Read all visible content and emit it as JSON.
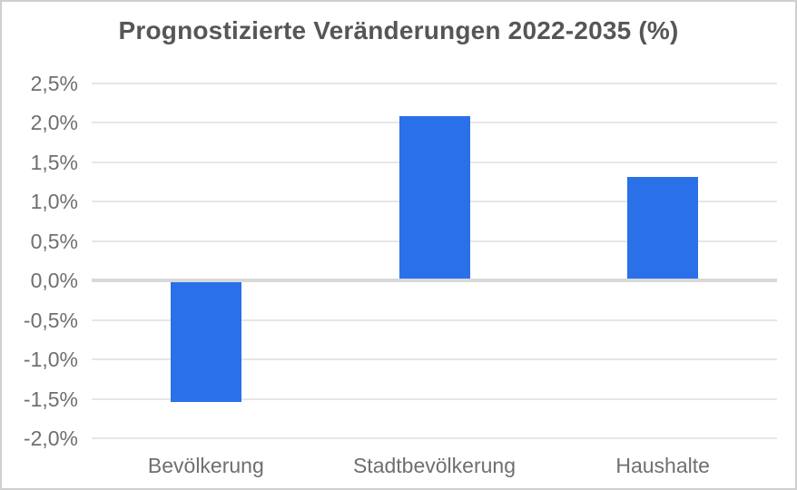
{
  "window": {
    "background": "#ffffff",
    "border_color": "#cfcfcf"
  },
  "chart_data": {
    "type": "bar",
    "title": "Prognostizierte Veränderungen 2022-2035 (%)",
    "categories": [
      "Bevölkerung",
      "Stadtbevölkerung",
      "Haushalte"
    ],
    "values": [
      -1.54,
      2.08,
      1.32
    ],
    "xlabel": "",
    "ylabel": "",
    "ylim": [
      -2.0,
      2.5
    ],
    "ytick_step": 0.5,
    "ytick_labels": [
      "2,5%",
      "2,0%",
      "1,5%",
      "1,0%",
      "0,5%",
      "0,0%",
      "-0,5%",
      "-1,0%",
      "-1,5%",
      "-2,0%"
    ],
    "grid": true,
    "legend": "none",
    "bar_color": "#2a70e8",
    "title_color": "#565656",
    "axis_text_color": "#6f6f6f",
    "gridline_color": "#e6e6e6",
    "zero_line_color": "#d9d9d9"
  }
}
